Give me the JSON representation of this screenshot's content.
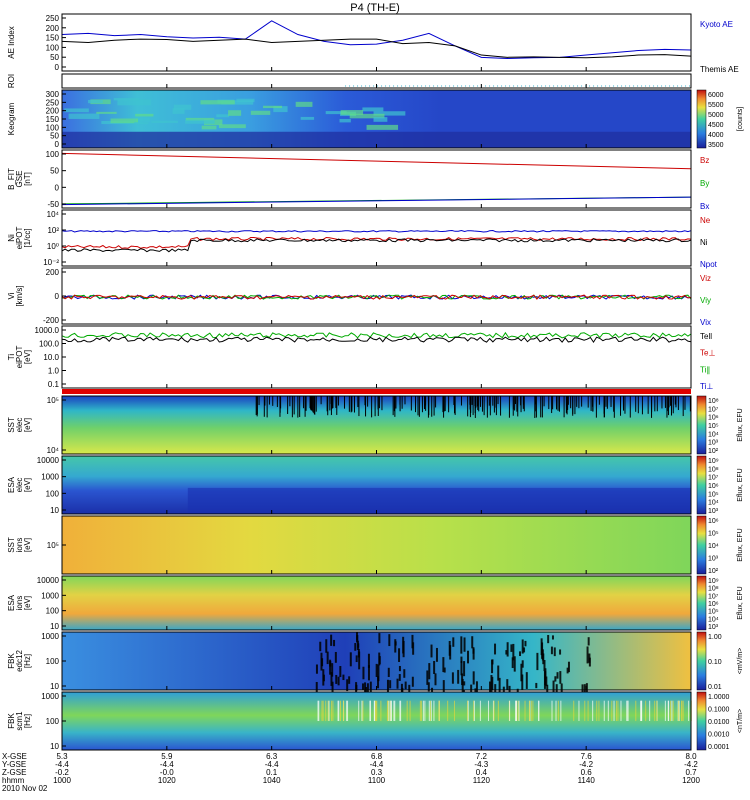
{
  "title": "P4 (TH-E)",
  "colors": {
    "bg": "#ffffff",
    "frame": "#000000",
    "blue": "#0000cc",
    "red": "#cc0000",
    "green": "#00aa00",
    "black": "#000000",
    "cyan": "#3ab0c8"
  },
  "time_axis": {
    "range_hhmm": [
      "1000",
      "1200"
    ],
    "ticks": [
      "1000",
      "1020",
      "1040",
      "1100",
      "1120",
      "1140",
      "1200"
    ],
    "row_labels": [
      "X-GSE",
      "Y-GSE",
      "Z-GSE",
      "hhmm",
      "2010 Nov 02"
    ],
    "rows": [
      [
        "5.3",
        "5.9",
        "6.3",
        "6.8",
        "7.2",
        "7.6",
        "8.0"
      ],
      [
        "-4.4",
        "-4.4",
        "-4.4",
        "-4.4",
        "-4.3",
        "-4.2",
        "-4.2"
      ],
      [
        "-0.2",
        "-0.0",
        "0.1",
        "0.3",
        "0.4",
        "0.6",
        "0.7"
      ],
      [
        "1000",
        "1020",
        "1040",
        "1100",
        "1120",
        "1140",
        "1200"
      ]
    ]
  },
  "chart_data": [
    {
      "id": "ae",
      "type": "line",
      "ylabel": "AE Index",
      "yticks": [
        "250",
        "200",
        "150",
        "100",
        "50",
        "0"
      ],
      "ylim": [
        0,
        250
      ],
      "x_minutes": [
        0,
        5,
        10,
        15,
        20,
        25,
        30,
        35,
        40,
        45,
        50,
        55,
        60,
        65,
        70,
        75,
        80,
        85,
        90,
        95,
        100,
        105,
        110,
        115,
        120
      ],
      "series": [
        {
          "name": "Kyoto AE",
          "color_key": "blue",
          "values": [
            160,
            165,
            155,
            160,
            150,
            145,
            148,
            140,
            220,
            160,
            130,
            115,
            118,
            135,
            165,
            110,
            60,
            55,
            58,
            60,
            70,
            80,
            90,
            95,
            92
          ]
        },
        {
          "name": "Themis AE",
          "color_key": "black",
          "values": [
            130,
            125,
            135,
            140,
            138,
            130,
            135,
            140,
            125,
            130,
            135,
            140,
            140,
            120,
            125,
            110,
            70,
            60,
            62,
            60,
            58,
            62,
            70,
            72,
            65
          ]
        }
      ]
    },
    {
      "id": "roi",
      "type": "line",
      "ylabel": "ROI",
      "note": "dotted baseline"
    },
    {
      "id": "keogram",
      "type": "heatmap",
      "ylabel": "Keogram",
      "yticks": [
        "300",
        "250",
        "200",
        "150",
        "100",
        "50",
        "0"
      ],
      "colorbar": {
        "label": "[counts]",
        "ticks": [
          "6000",
          "5500",
          "5000",
          "4500",
          "4000",
          "3500"
        ]
      }
    },
    {
      "id": "bfgm",
      "type": "line",
      "ylabel": "B_FIT",
      "sublabel": "GSE",
      "unit": "[nT]",
      "yticks": [
        "100",
        "50",
        "0",
        "-50"
      ],
      "ylim": [
        -60,
        110
      ],
      "series": [
        {
          "name": "Bz",
          "color_key": "red",
          "x_minutes": [
            0,
            120
          ],
          "values": [
            100,
            55
          ]
        },
        {
          "name": "By",
          "color_key": "green",
          "x_minutes": [
            0,
            120
          ],
          "values": [
            -48,
            -28
          ]
        },
        {
          "name": "Bx",
          "color_key": "blue",
          "x_minutes": [
            0,
            120
          ],
          "values": [
            -50,
            -28
          ]
        }
      ]
    },
    {
      "id": "density",
      "type": "line",
      "ylabel": "Ni",
      "sublabel": "eiPOT",
      "unit": "[1/cc]",
      "yticks": [
        "10⁴",
        "10²",
        "10⁰",
        "10⁻²"
      ],
      "log": true,
      "series": [
        {
          "name": "Ne",
          "color_key": "red"
        },
        {
          "name": "Ni",
          "color_key": "black"
        },
        {
          "name": "Npot",
          "color_key": "blue"
        }
      ]
    },
    {
      "id": "velocity",
      "type": "line",
      "ylabel": "Vi",
      "unit": "[km/s]",
      "yticks": [
        "200",
        "0",
        "-200"
      ],
      "series": [
        {
          "name": "Viz",
          "color_key": "red"
        },
        {
          "name": "Viy",
          "color_key": "green"
        },
        {
          "name": "Vix",
          "color_key": "blue"
        }
      ]
    },
    {
      "id": "temperature",
      "type": "line",
      "ylabel": "Ti",
      "sublabel": "eiPOT",
      "unit": "[eV]",
      "yticks": [
        "1000.0",
        "100.0",
        "10.0",
        "1.0",
        "0.1"
      ],
      "log": true,
      "series": [
        {
          "name": "Tell",
          "color_key": "black"
        },
        {
          "name": "Te⊥",
          "color_key": "red"
        },
        {
          "name": "Ti∥",
          "color_key": "green"
        },
        {
          "name": "Ti⊥",
          "color_key": "blue"
        }
      ]
    },
    {
      "id": "sst_e",
      "type": "heatmap",
      "ylabel": "SST",
      "sublabel": "elec",
      "unit": "[eV]",
      "yticks": [
        "10⁵",
        "10⁴"
      ],
      "colorbar": {
        "label": "Eflux, EFU",
        "ticks": [
          "10⁸",
          "10⁷",
          "10⁶",
          "10⁵",
          "10⁴",
          "10³",
          "10²"
        ]
      }
    },
    {
      "id": "esa_e",
      "type": "heatmap",
      "ylabel": "ESA",
      "sublabel": "elec",
      "unit": "[eV]",
      "yticks": [
        "10000",
        "1000",
        "100",
        "10"
      ],
      "colorbar": {
        "label": "Eflux, EFU",
        "ticks": [
          "10⁹",
          "10⁸",
          "10⁷",
          "10⁶",
          "10⁵",
          "10⁴",
          "10³"
        ]
      }
    },
    {
      "id": "sst_i",
      "type": "heatmap",
      "ylabel": "SST",
      "sublabel": "ions",
      "unit": "[eV]",
      "yticks": [
        "10⁵"
      ],
      "colorbar": {
        "label": "Eflux, EFU",
        "ticks": [
          "10⁶",
          "10⁵",
          "10⁴",
          "10³",
          "10²"
        ]
      }
    },
    {
      "id": "esa_i",
      "type": "heatmap",
      "ylabel": "ESA",
      "sublabel": "ions",
      "unit": "[eV]",
      "yticks": [
        "10000",
        "1000",
        "100",
        "10"
      ],
      "colorbar": {
        "label": "Eflux, EFU",
        "ticks": [
          "10⁹",
          "10⁸",
          "10⁷",
          "10⁶",
          "10⁵",
          "10⁴",
          "10³"
        ]
      }
    },
    {
      "id": "fbk_e",
      "type": "heatmap",
      "ylabel": "FBK",
      "sublabel": "edc12",
      "unit": "[Hz]",
      "yticks": [
        "1000",
        "100",
        "10"
      ],
      "colorbar": {
        "label": "<mV/m>",
        "ticks": [
          "1.00",
          "0.10",
          "0.01"
        ]
      }
    },
    {
      "id": "fbk_b",
      "type": "heatmap",
      "ylabel": "FBK",
      "sublabel": "scm1",
      "unit": "[Hz]",
      "yticks": [
        "1000",
        "100",
        "10"
      ],
      "colorbar": {
        "label": "<nT/m>",
        "ticks": [
          "1.0000",
          "0.1000",
          "0.0100",
          "0.0010",
          "0.0001"
        ]
      }
    }
  ]
}
